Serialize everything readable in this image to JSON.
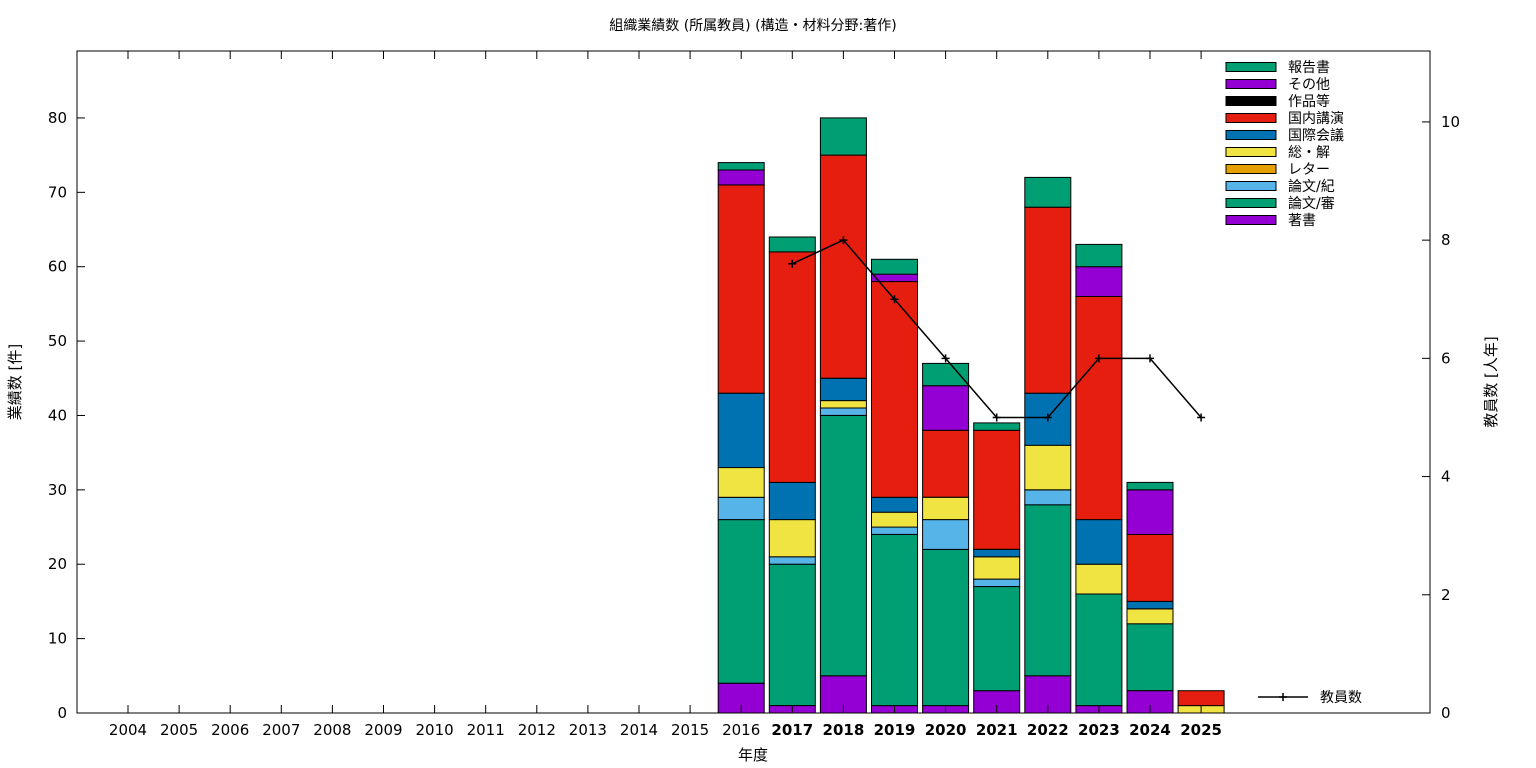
{
  "chart_data": {
    "type": "bar",
    "stacked": true,
    "title": "組織業績数 (所属教員) (構造・材料分野:著作)",
    "xlabel": "年度",
    "ylabel": "業績数 [件]",
    "y2label": "教員数 [人年]",
    "ylim": [
      0,
      89
    ],
    "y2lim": [
      0,
      11.2
    ],
    "yticks": [
      "0",
      "10",
      "20",
      "30",
      "40",
      "50",
      "60",
      "70",
      "80"
    ],
    "y2ticks": [
      "0",
      "2",
      "4",
      "6",
      "8",
      "10"
    ],
    "categories": [
      "2004",
      "2005",
      "2006",
      "2007",
      "2008",
      "2009",
      "2010",
      "2011",
      "2012",
      "2013",
      "2014",
      "2015",
      "2016",
      "2017",
      "2018",
      "2019",
      "2020",
      "2021",
      "2022",
      "2023",
      "2024",
      "2025"
    ],
    "bold_categories": [
      "2017",
      "2018",
      "2019",
      "2020",
      "2021",
      "2022",
      "2023",
      "2024",
      "2025"
    ],
    "legend_position": "top-right",
    "grid": false,
    "series": [
      {
        "name": "著書",
        "color": "#9400d3",
        "values": [
          0,
          0,
          0,
          0,
          0,
          0,
          0,
          0,
          0,
          0,
          0,
          0,
          4,
          1,
          5,
          1,
          1,
          3,
          5,
          1,
          3,
          0
        ]
      },
      {
        "name": "論文/審",
        "color": "#009e73",
        "values": [
          0,
          0,
          0,
          0,
          0,
          0,
          0,
          0,
          0,
          0,
          0,
          0,
          22,
          19,
          35,
          23,
          21,
          14,
          23,
          15,
          9,
          0
        ]
      },
      {
        "name": "論文/紀",
        "color": "#56b4e9",
        "values": [
          0,
          0,
          0,
          0,
          0,
          0,
          0,
          0,
          0,
          0,
          0,
          0,
          3,
          1,
          1,
          1,
          4,
          1,
          2,
          0,
          0,
          0
        ]
      },
      {
        "name": "レター",
        "color": "#e69f00",
        "values": [
          0,
          0,
          0,
          0,
          0,
          0,
          0,
          0,
          0,
          0,
          0,
          0,
          0,
          0,
          0,
          0,
          0,
          0,
          0,
          0,
          0,
          0
        ]
      },
      {
        "name": "総・解",
        "color": "#f0e442",
        "values": [
          0,
          0,
          0,
          0,
          0,
          0,
          0,
          0,
          0,
          0,
          0,
          0,
          4,
          5,
          1,
          2,
          3,
          3,
          6,
          4,
          2,
          1
        ]
      },
      {
        "name": "国際会議",
        "color": "#0072b2",
        "values": [
          0,
          0,
          0,
          0,
          0,
          0,
          0,
          0,
          0,
          0,
          0,
          0,
          10,
          5,
          3,
          2,
          0,
          1,
          7,
          6,
          1,
          0
        ]
      },
      {
        "name": "国内講演",
        "color": "#e51e10",
        "values": [
          0,
          0,
          0,
          0,
          0,
          0,
          0,
          0,
          0,
          0,
          0,
          0,
          28,
          31,
          30,
          29,
          9,
          16,
          25,
          30,
          9,
          2
        ]
      },
      {
        "name": "作品等",
        "color": "#000000",
        "values": [
          0,
          0,
          0,
          0,
          0,
          0,
          0,
          0,
          0,
          0,
          0,
          0,
          0,
          0,
          0,
          0,
          0,
          0,
          0,
          0,
          0,
          0
        ]
      },
      {
        "name": "その他",
        "color": "#9400d3",
        "values": [
          0,
          0,
          0,
          0,
          0,
          0,
          0,
          0,
          0,
          0,
          0,
          0,
          2,
          0,
          0,
          1,
          6,
          0,
          0,
          4,
          6,
          0
        ]
      },
      {
        "name": "報告書",
        "color": "#009e73",
        "values": [
          0,
          0,
          0,
          0,
          0,
          0,
          0,
          0,
          0,
          0,
          0,
          0,
          1,
          2,
          5,
          2,
          3,
          1,
          4,
          3,
          1,
          0
        ]
      }
    ],
    "line": {
      "name": "教員数",
      "color": "#000000",
      "x": [
        "2017",
        "2018",
        "2019",
        "2020",
        "2021",
        "2022",
        "2023",
        "2024",
        "2025"
      ],
      "values": [
        7.6,
        8,
        7,
        6,
        5,
        5,
        6,
        6,
        5
      ]
    }
  }
}
